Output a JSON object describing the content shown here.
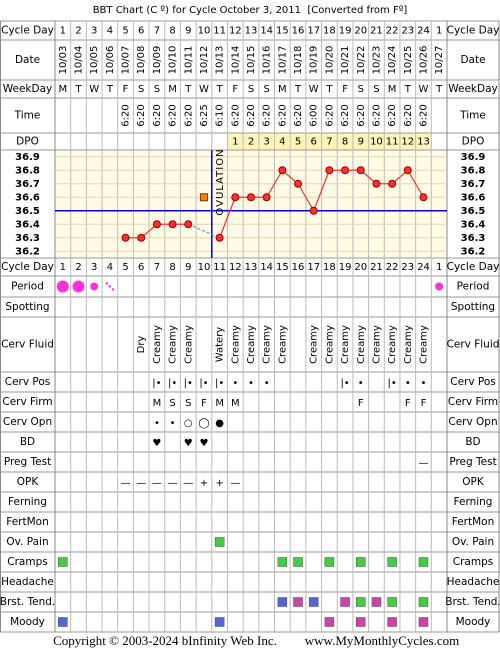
{
  "title": "BBT Chart (C º) for Cycle October 3, 2011  [Converted from Fº]",
  "header": {
    "cycle_day": "Cycle Day",
    "date": "Date",
    "weekday": "WeekDay",
    "time": "Time",
    "dpo": "DPO",
    "dates": [
      "10/03",
      "10/04",
      "10/05",
      "10/06",
      "10/07",
      "10/08",
      "10/09",
      "10/10",
      "10/11",
      "10/12",
      "10/13",
      "10/14",
      "10/15",
      "10/16",
      "10/17",
      "10/18",
      "10/19",
      "10/20",
      "10/21",
      "10/22",
      "10/23",
      "10/24",
      "10/25",
      "10/26",
      "10/27"
    ],
    "weekdays": [
      "M",
      "T",
      "W",
      "T",
      "F",
      "S",
      "S",
      "M",
      "T",
      "W",
      "T",
      "F",
      "S",
      "S",
      "M",
      "T",
      "W",
      "T",
      "F",
      "S",
      "S",
      "M",
      "T",
      "W",
      "T"
    ],
    "times": [
      null,
      null,
      null,
      null,
      "6:20",
      "6:20",
      "6:20",
      "6:20",
      "6:20",
      "6:25",
      "6:10",
      "6:20",
      "6:20",
      "6:20",
      "6:20",
      "6:20",
      "6:00",
      "6:20",
      "6:20",
      "6:20",
      "6:20",
      "6:20",
      "6:20",
      "6:20",
      null
    ],
    "dpo_values": [
      null,
      null,
      null,
      null,
      null,
      null,
      null,
      null,
      null,
      null,
      null,
      1,
      2,
      3,
      4,
      5,
      6,
      7,
      8,
      9,
      10,
      11,
      12,
      13,
      null
    ]
  },
  "chart_data": {
    "type": "line",
    "categories": [
      1,
      2,
      3,
      4,
      5,
      6,
      7,
      8,
      9,
      10,
      11,
      12,
      13,
      14,
      15,
      16,
      17,
      18,
      19,
      20,
      21,
      22,
      23,
      24,
      1
    ],
    "series": [
      {
        "color": "#ff3030",
        "values": [
          null,
          null,
          null,
          null,
          36.3,
          36.3,
          36.4,
          36.4,
          36.4,
          null,
          36.3,
          36.6,
          36.6,
          36.6,
          36.8,
          36.7,
          36.5,
          36.8,
          36.8,
          36.8,
          36.7,
          36.7,
          36.8,
          36.6,
          null
        ]
      },
      {
        "color": "#ff8000",
        "marker": "square",
        "values": [
          null,
          null,
          null,
          null,
          null,
          null,
          null,
          null,
          null,
          36.6,
          null,
          null,
          null,
          null,
          null,
          null,
          null,
          null,
          null,
          null,
          null,
          null,
          null,
          null,
          null
        ]
      }
    ],
    "ylim": [
      36.15,
      36.95
    ],
    "yticks": [
      36.9,
      36.8,
      36.7,
      36.6,
      36.5,
      36.4,
      36.3,
      36.2
    ],
    "grid": true,
    "coverline": 36.5,
    "coverline_color": "#0000cc",
    "ovulation_day": 11,
    "ovulation_label": "OVULATION"
  },
  "rows": [
    {
      "label": "Period",
      "color": "#ff33dd",
      "cells": [
        {
          "period": "heavy"
        },
        {
          "period": "heavy"
        },
        {
          "period": "medium"
        },
        {
          "period": "spotting"
        },
        null,
        null,
        null,
        null,
        null,
        null,
        null,
        null,
        null,
        null,
        null,
        null,
        null,
        null,
        null,
        null,
        null,
        null,
        null,
        null,
        {
          "period": "medium"
        }
      ]
    },
    {
      "label": "Spotting",
      "cells": [
        null,
        null,
        null,
        null,
        null,
        null,
        null,
        null,
        null,
        null,
        null,
        null,
        null,
        null,
        null,
        null,
        null,
        null,
        null,
        null,
        null,
        null,
        null,
        null,
        null
      ]
    },
    {
      "label": "Cerv Fluid",
      "vertical": true,
      "color": "#000000",
      "cells": [
        null,
        null,
        null,
        null,
        null,
        "Dry",
        "Creamy",
        "Creamy",
        "Creamy",
        null,
        "Watery",
        "Creamy",
        "Creamy",
        "Creamy",
        "Creamy",
        null,
        "Creamy",
        "Creamy",
        "Creamy",
        "Creamy",
        "Creamy",
        "Creamy",
        "Creamy",
        "Creamy",
        null
      ]
    },
    {
      "label": "Cerv Pos",
      "color": "#9a5cc0",
      "cells": [
        null,
        null,
        null,
        null,
        null,
        null,
        "|•",
        "|•",
        "|•",
        "|•",
        "|•",
        "•",
        "•",
        "•",
        null,
        null,
        null,
        null,
        "|•",
        "•",
        null,
        "|•",
        "•",
        "•",
        null
      ]
    },
    {
      "label": "Cerv Firm",
      "color": "#9a5cc0",
      "cells": [
        null,
        null,
        null,
        null,
        null,
        null,
        "M",
        "S",
        "S",
        "F",
        "M",
        "M",
        null,
        null,
        null,
        null,
        null,
        null,
        null,
        "F",
        null,
        null,
        "F",
        "F",
        null
      ]
    },
    {
      "label": "Cerv Opn",
      "color": "#c04a8a",
      "cells": [
        null,
        null,
        null,
        null,
        null,
        null,
        "•",
        "•",
        "○",
        "◯",
        "●",
        null,
        null,
        null,
        null,
        null,
        null,
        null,
        null,
        null,
        null,
        null,
        null,
        null,
        null
      ]
    },
    {
      "label": "BD",
      "color": "#ee3388",
      "cells": [
        null,
        null,
        null,
        null,
        null,
        null,
        "♥",
        null,
        "♥",
        "♥",
        null,
        null,
        null,
        null,
        null,
        null,
        null,
        null,
        null,
        null,
        null,
        null,
        null,
        null,
        null
      ]
    },
    {
      "label": "Preg Test",
      "color": "#7030a0",
      "cells": [
        null,
        null,
        null,
        null,
        null,
        null,
        null,
        null,
        null,
        null,
        null,
        null,
        null,
        null,
        null,
        null,
        null,
        null,
        null,
        null,
        null,
        null,
        null,
        "—",
        null
      ]
    },
    {
      "label": "OPK",
      "color": "#7030a0",
      "cells": [
        null,
        null,
        null,
        null,
        "—",
        "—",
        "—",
        "—",
        "—",
        "+",
        "+",
        "—",
        null,
        null,
        null,
        null,
        null,
        null,
        null,
        null,
        null,
        null,
        null,
        null,
        null
      ]
    },
    {
      "label": "Ferning",
      "cells": [
        null,
        null,
        null,
        null,
        null,
        null,
        null,
        null,
        null,
        null,
        null,
        null,
        null,
        null,
        null,
        null,
        null,
        null,
        null,
        null,
        null,
        null,
        null,
        null,
        null
      ]
    },
    {
      "label": "FertMon",
      "cells": [
        null,
        null,
        null,
        null,
        null,
        null,
        null,
        null,
        null,
        null,
        null,
        null,
        null,
        null,
        null,
        null,
        null,
        null,
        null,
        null,
        null,
        null,
        null,
        null,
        null
      ]
    },
    {
      "label": "Ov. Pain",
      "cells": [
        null,
        null,
        null,
        null,
        null,
        null,
        null,
        null,
        null,
        null,
        {
          "color": "#44cc44"
        },
        null,
        null,
        null,
        null,
        null,
        null,
        null,
        null,
        null,
        null,
        null,
        null,
        null,
        null
      ]
    },
    {
      "label": "Cramps",
      "cells": [
        {
          "color": "#44cc44"
        },
        null,
        null,
        null,
        null,
        null,
        null,
        null,
        null,
        null,
        null,
        null,
        null,
        null,
        {
          "color": "#44cc44"
        },
        {
          "color": "#44cc44"
        },
        null,
        {
          "color": "#44cc44"
        },
        null,
        {
          "color": "#44cc44"
        },
        null,
        {
          "color": "#44cc44"
        },
        null,
        {
          "color": "#44cc44"
        },
        null
      ]
    },
    {
      "label": "Headache",
      "cells": [
        null,
        null,
        null,
        null,
        null,
        null,
        null,
        null,
        null,
        null,
        null,
        null,
        null,
        null,
        null,
        null,
        null,
        null,
        null,
        null,
        null,
        null,
        null,
        null,
        null
      ]
    },
    {
      "label": "Brst. Tend.",
      "cells": [
        null,
        null,
        null,
        null,
        null,
        null,
        null,
        null,
        null,
        null,
        null,
        null,
        null,
        null,
        {
          "color": "#5566dd"
        },
        {
          "color": "#cc44aa"
        },
        {
          "color": "#5566dd"
        },
        null,
        {
          "color": "#cc44aa"
        },
        {
          "color": "#44cc44"
        },
        {
          "color": "#cc44aa"
        },
        {
          "color": "#44cc44"
        },
        null,
        {
          "color": "#44cc44"
        },
        null
      ]
    },
    {
      "label": "Moody",
      "cells": [
        {
          "color": "#5566dd"
        },
        null,
        null,
        null,
        null,
        null,
        null,
        null,
        null,
        null,
        {
          "color": "#5566dd"
        },
        null,
        null,
        null,
        null,
        null,
        null,
        {
          "color": "#cc44aa"
        },
        null,
        {
          "color": "#cc44aa"
        },
        null,
        {
          "color": "#cc44aa"
        },
        null,
        {
          "color": "#cc44aa"
        },
        null
      ]
    }
  ],
  "footer": {
    "copyright": "Copyright © 2003-2024 bInfinity Web Inc.",
    "url": "www.MyMonthlyCycles.com"
  }
}
